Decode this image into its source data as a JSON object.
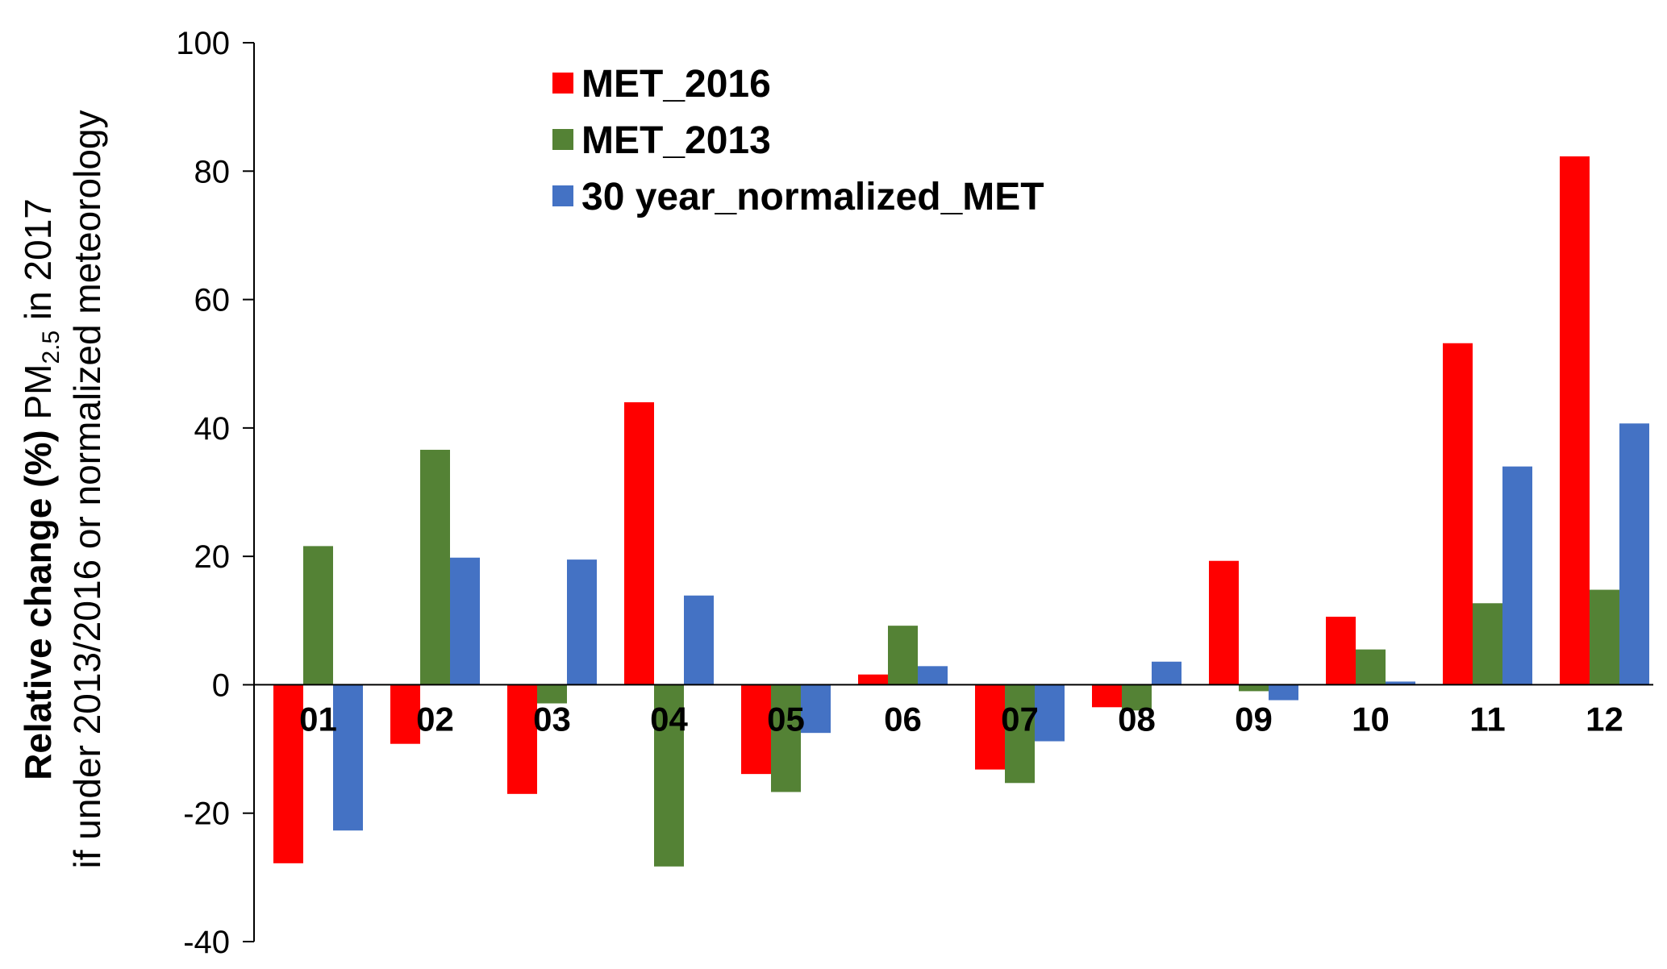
{
  "chart_data": {
    "type": "bar",
    "title": "",
    "categories": [
      "01",
      "02",
      "03",
      "04",
      "05",
      "06",
      "07",
      "08",
      "09",
      "10",
      "11",
      "12"
    ],
    "series": [
      {
        "name": "MET_2016",
        "color": "#ff0000",
        "values": [
          -27.8,
          -9.2,
          -17.0,
          44.0,
          -13.9,
          1.6,
          -13.2,
          -3.5,
          19.3,
          10.6,
          53.2,
          82.3
        ]
      },
      {
        "name": "MET_2013",
        "color": "#548235",
        "values": [
          21.6,
          36.6,
          -2.9,
          -28.3,
          -16.7,
          9.2,
          -15.3,
          -4.0,
          -1.0,
          5.5,
          12.7,
          14.8
        ]
      },
      {
        "name": "30 year_normalized_MET",
        "color": "#4472c4",
        "values": [
          -22.7,
          19.8,
          19.5,
          13.9,
          -7.5,
          2.9,
          -8.8,
          3.6,
          -2.4,
          0.5,
          34.0,
          40.7
        ]
      }
    ],
    "ylim": [
      -40,
      100
    ],
    "yticks": [
      "-40",
      "-20",
      "0",
      "20",
      "40",
      "60",
      "80",
      "100"
    ],
    "ytick_values": [
      -40,
      -20,
      0,
      20,
      40,
      60,
      80,
      100
    ],
    "ylabel": {
      "line1_bold": "Relative change (%)",
      "line1_pm": " PM",
      "line1_sub": "2.5",
      "line1_tail": " in 2017",
      "line2": "if under 2013/2016 or normalized meteorology"
    },
    "xlabel": "",
    "legend_position": "top-center",
    "grid": false
  }
}
